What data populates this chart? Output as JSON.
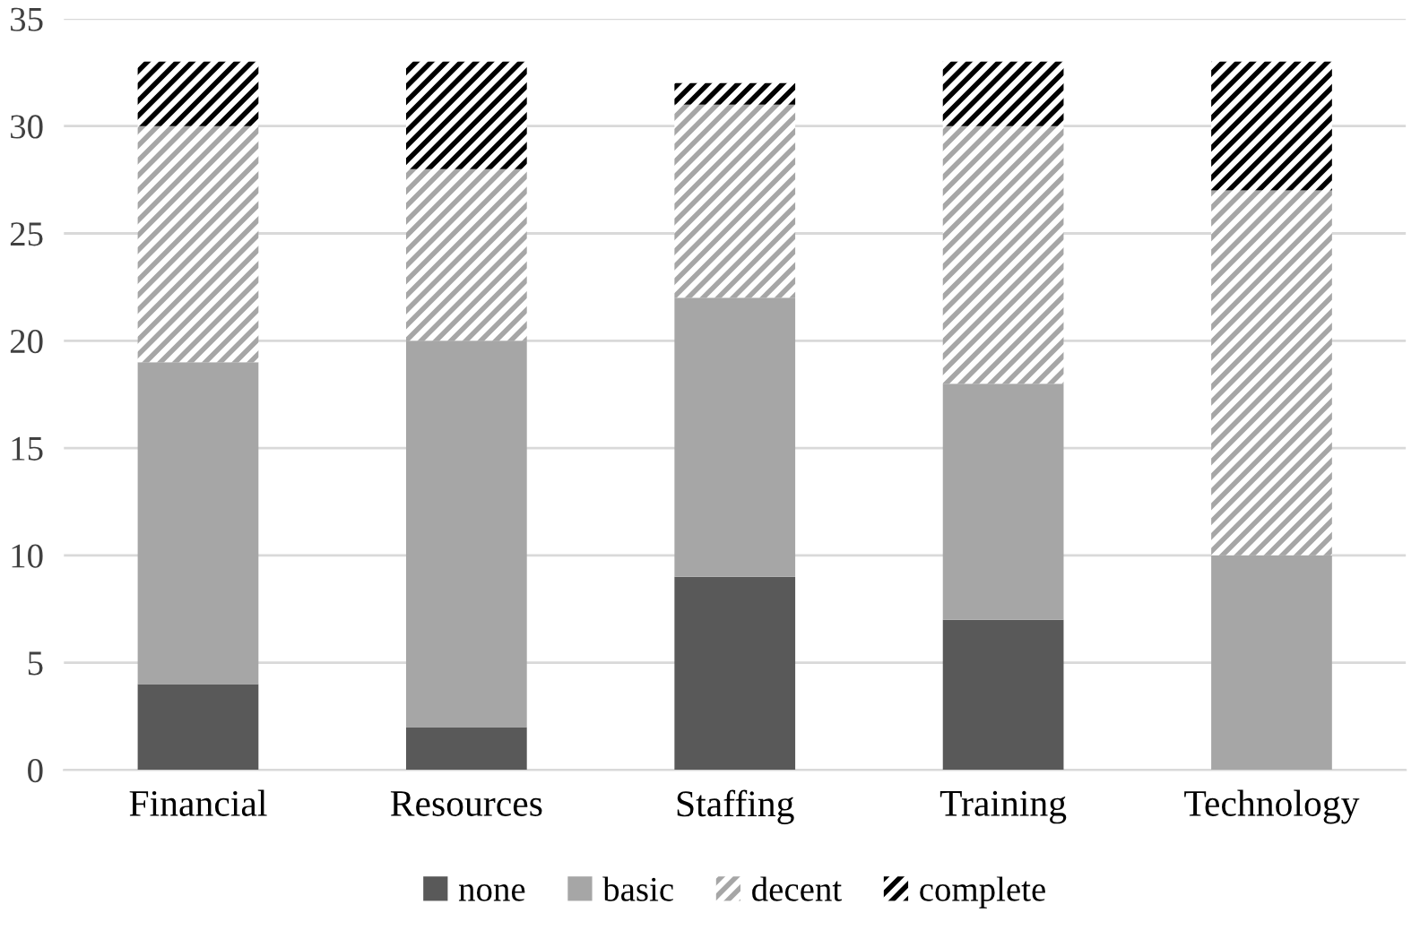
{
  "chart_data": {
    "type": "bar",
    "stacked": true,
    "categories": [
      "Financial",
      "Resources",
      "Staffing",
      "Training",
      "Technology"
    ],
    "series": [
      {
        "name": "none",
        "color": "#595959",
        "values": [
          4,
          2,
          9,
          7,
          0
        ]
      },
      {
        "name": "basic",
        "color": "#a6a6a6",
        "values": [
          15,
          18,
          13,
          11,
          10
        ]
      },
      {
        "name": "decent",
        "color": "#a6a6a6",
        "values": [
          11,
          8,
          9,
          12,
          17
        ]
      },
      {
        "name": "complete",
        "color": "#000000",
        "values": [
          3,
          5,
          1,
          3,
          6
        ]
      }
    ],
    "ylim": [
      0,
      35
    ],
    "yticks": [
      0,
      5,
      10,
      15,
      20,
      25,
      30,
      35
    ],
    "grid": "y",
    "legend": "bottom"
  }
}
